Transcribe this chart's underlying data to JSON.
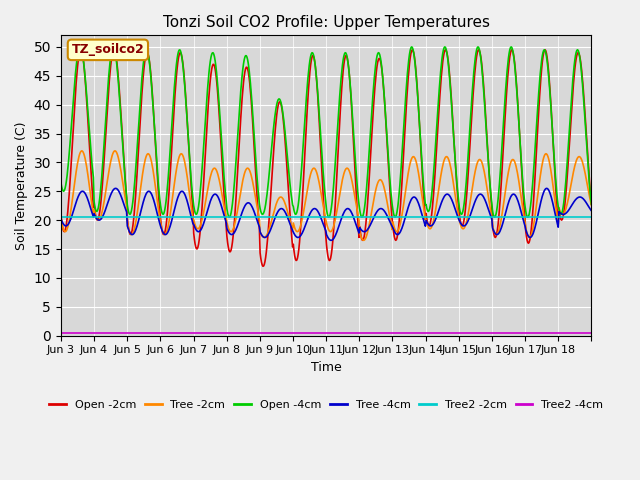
{
  "title": "Tonzi Soil CO2 Profile: Upper Temperatures",
  "xlabel": "Time",
  "ylabel": "Soil Temperature (C)",
  "annotation": "TZ_soilco2",
  "ylim": [
    0,
    52
  ],
  "yticks": [
    0,
    5,
    10,
    15,
    20,
    25,
    30,
    35,
    40,
    45,
    50
  ],
  "background_color": "#f0f0f0",
  "plot_bg_color": "#d8d8d8",
  "series": [
    {
      "label": "Open -2cm",
      "color": "#dd0000"
    },
    {
      "label": "Tree -2cm",
      "color": "#ff8800"
    },
    {
      "label": "Open -4cm",
      "color": "#00cc00"
    },
    {
      "label": "Tree -4cm",
      "color": "#0000cc"
    },
    {
      "label": "Tree2 -2cm",
      "color": "#00cccc"
    },
    {
      "label": "Tree2 -4cm",
      "color": "#cc00cc"
    }
  ],
  "x_tick_labels": [
    "Jun 3",
    "Jun 4",
    "Jun 5",
    "Jun 6",
    "Jun 7",
    "Jun 8",
    "Jun 9",
    "Jun 10",
    "Jun 11",
    "Jun 12",
    "Jun 13",
    "Jun 14",
    "Jun 15",
    "Jun 16",
    "Jun 17",
    "Jun 18"
  ],
  "n_days": 16,
  "points_per_day": 48,
  "open2_peaks": [
    49.5,
    49.5,
    49.0,
    49.0,
    47.0,
    46.5,
    40.5,
    48.5,
    48.5,
    48.0,
    49.5,
    49.5,
    49.5,
    49.5,
    49.5,
    49.0
  ],
  "open2_troughs": [
    18.0,
    20.0,
    17.5,
    17.5,
    15.0,
    14.5,
    12.0,
    13.0,
    13.0,
    16.5,
    16.5,
    19.0,
    19.0,
    17.0,
    16.0,
    20.0
  ],
  "tree2_peaks": [
    32.0,
    32.0,
    31.5,
    31.5,
    29.0,
    29.0,
    24.0,
    29.0,
    29.0,
    27.0,
    31.0,
    31.0,
    30.5,
    30.5,
    31.5,
    31.0
  ],
  "tree2_troughs": [
    18.0,
    20.0,
    17.5,
    17.5,
    18.5,
    18.0,
    17.0,
    18.0,
    18.0,
    16.5,
    18.0,
    18.5,
    18.5,
    17.5,
    17.0,
    21.0
  ],
  "open4_peaks": [
    50.0,
    50.0,
    49.5,
    49.5,
    49.0,
    48.5,
    41.0,
    49.0,
    49.0,
    49.0,
    50.0,
    50.0,
    50.0,
    50.0,
    49.5,
    49.5
  ],
  "open4_troughs": [
    25.0,
    21.5,
    21.0,
    21.0,
    21.0,
    20.5,
    21.0,
    21.0,
    20.5,
    20.5,
    20.5,
    21.5,
    21.0,
    20.5,
    20.5,
    21.0
  ],
  "tree4_peaks": [
    25.0,
    25.5,
    25.0,
    25.0,
    24.5,
    23.0,
    22.0,
    22.0,
    22.0,
    22.0,
    24.0,
    24.5,
    24.5,
    24.5,
    25.5,
    24.0
  ],
  "tree4_troughs": [
    19.0,
    20.0,
    17.5,
    17.5,
    18.0,
    17.5,
    17.0,
    17.0,
    16.5,
    18.0,
    17.5,
    19.0,
    19.0,
    17.5,
    17.0,
    21.0
  ],
  "t2_2cm_val": 20.5,
  "t2_4cm_val": 0.5
}
